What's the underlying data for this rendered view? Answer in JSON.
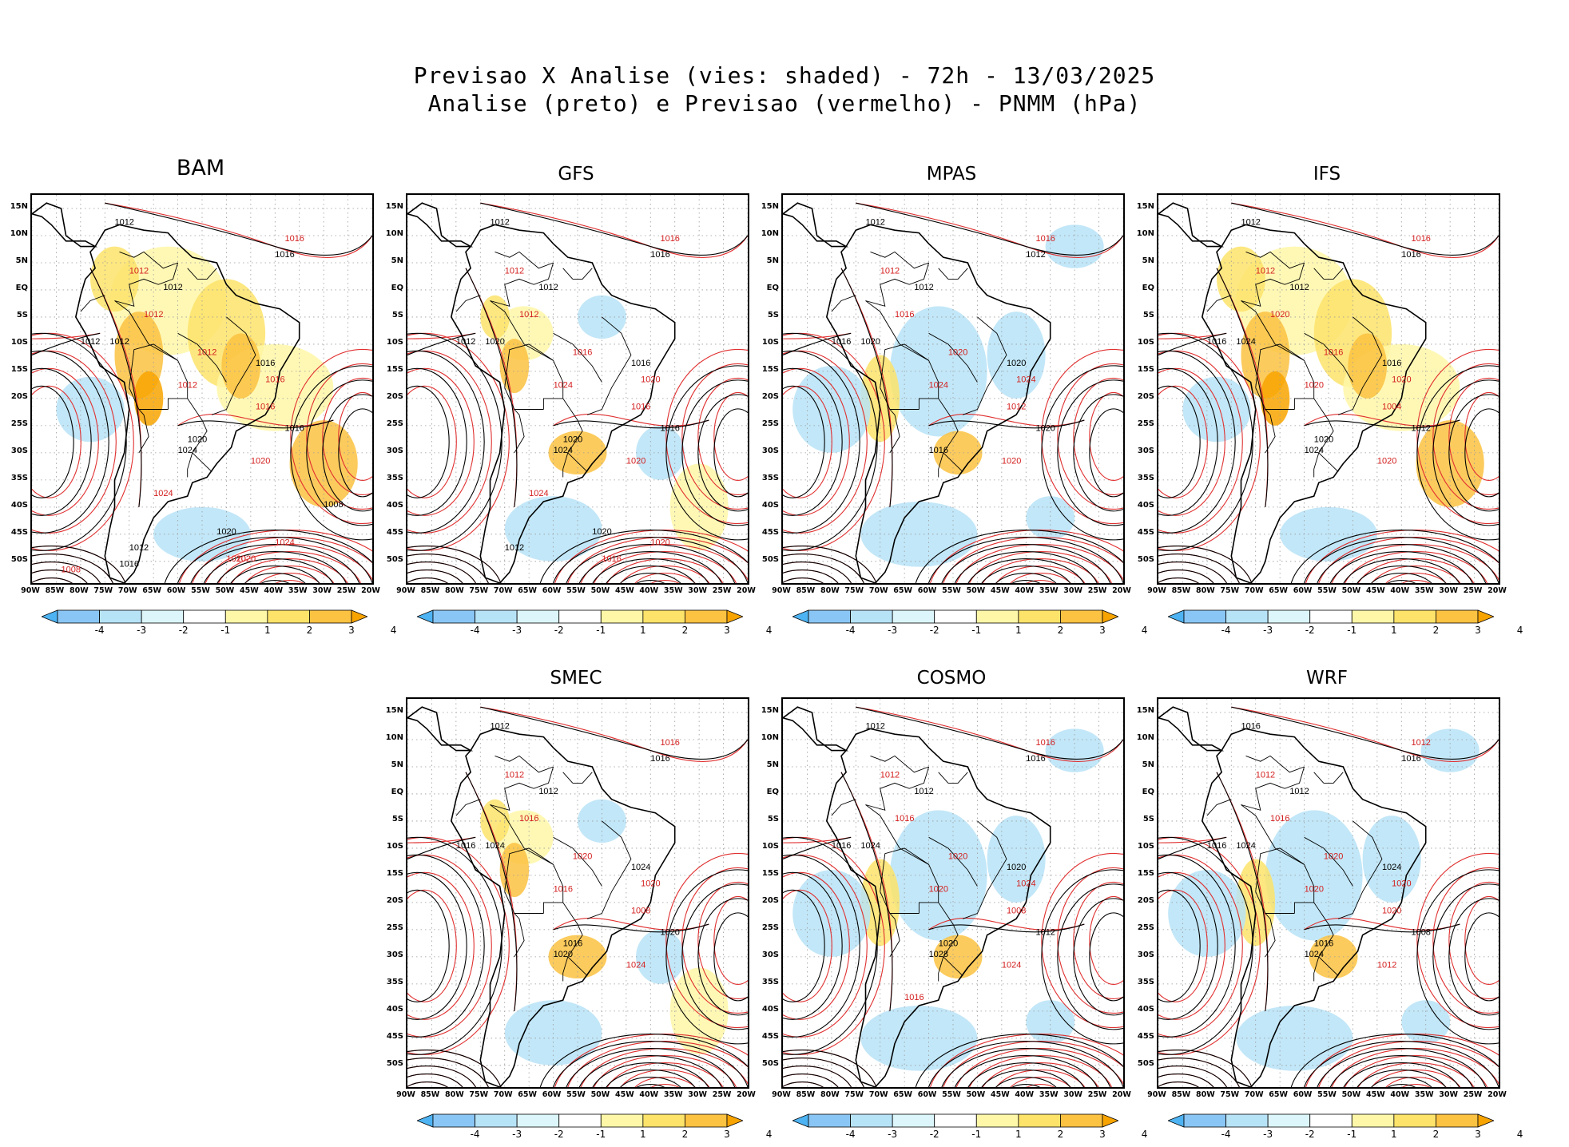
{
  "title_line1": "Previsao X Analise (vies: shaded) - 72h - 13/03/2025",
  "title_line2": "Analise (preto) e Previsao (vermelho) - PNMM (hPa)",
  "lat_labels": [
    "15N",
    "10N",
    "5N",
    "EQ",
    "5S",
    "10S",
    "15S",
    "20S",
    "25S",
    "30S",
    "35S",
    "40S",
    "45S",
    "50S"
  ],
  "lon_labels": [
    "90W",
    "85W",
    "80W",
    "75W",
    "70W",
    "65W",
    "60W",
    "55W",
    "50W",
    "45W",
    "40W",
    "35W",
    "30W",
    "25W",
    "20W"
  ],
  "colorbar": {
    "labels": [
      "-4",
      "-3",
      "-2",
      "-1",
      "1",
      "2",
      "3",
      "4"
    ],
    "colors": [
      "#4eb3f2",
      "#8ac6f5",
      "#b7e3f7",
      "#dcf6fb",
      "#ffffff",
      "#fff7a8",
      "#fde36a",
      "#fcc241",
      "#f8a400"
    ]
  },
  "panels": [
    {
      "model": "BAM",
      "labels": [
        "1012",
        "1016",
        "1016",
        "1012",
        "1012",
        "1012",
        "1012",
        "1012",
        "1016",
        "1016",
        "1012",
        "1012",
        "1024",
        "1020",
        "1016",
        "1016",
        "1020",
        "1024",
        "1020",
        "1020",
        "1012",
        "1024",
        "1008",
        "1020",
        "1016",
        "1008"
      ],
      "bias": "warm"
    },
    {
      "model": "GFS",
      "labels": [
        "1012",
        "1016",
        "1016",
        "1012",
        "1012",
        "1012",
        "1012",
        "1016",
        "1016",
        "1020",
        "1020",
        "1024",
        "1024",
        "1020",
        "1016",
        "1016",
        "1020",
        "1024",
        "1020",
        "1016",
        "1012",
        "1020"
      ],
      "bias": "mixed"
    },
    {
      "model": "MPAS",
      "labels": [
        "1012",
        "1016",
        "1012",
        "1012",
        "1012",
        "1016",
        "1016",
        "1020",
        "1020",
        "1024",
        "1020",
        "1024",
        "1016",
        "1020",
        "1020",
        "1012"
      ],
      "bias": "cool"
    },
    {
      "model": "IFS",
      "labels": [
        "1012",
        "1016",
        "1016",
        "1012",
        "1012",
        "1020",
        "1016",
        "1016",
        "1016",
        "1020",
        "1024",
        "1020",
        "1024",
        "1020",
        "1012",
        "1004",
        "1020"
      ],
      "bias": "warm"
    },
    {
      "model": "SMEC",
      "labels": [
        "1012",
        "1016",
        "1016",
        "1012",
        "1012",
        "1016",
        "1016",
        "1020",
        "1024",
        "1020",
        "1024",
        "1016",
        "1020",
        "1024",
        "1020",
        "1008",
        "1016"
      ],
      "bias": "mixed"
    },
    {
      "model": "COSMO",
      "labels": [
        "1012",
        "1016",
        "1016",
        "1012",
        "1012",
        "1016",
        "1016",
        "1020",
        "1020",
        "1024",
        "1024",
        "1020",
        "1028",
        "1024",
        "1012",
        "1008",
        "1020",
        "1016"
      ],
      "bias": "cool"
    },
    {
      "model": "WRF",
      "labels": [
        "1016",
        "1012",
        "1016",
        "1012",
        "1012",
        "1016",
        "1016",
        "1020",
        "1024",
        "1020",
        "1024",
        "1020",
        "1024",
        "1012",
        "1008",
        "1020",
        "1016"
      ],
      "bias": "cool"
    }
  ]
}
